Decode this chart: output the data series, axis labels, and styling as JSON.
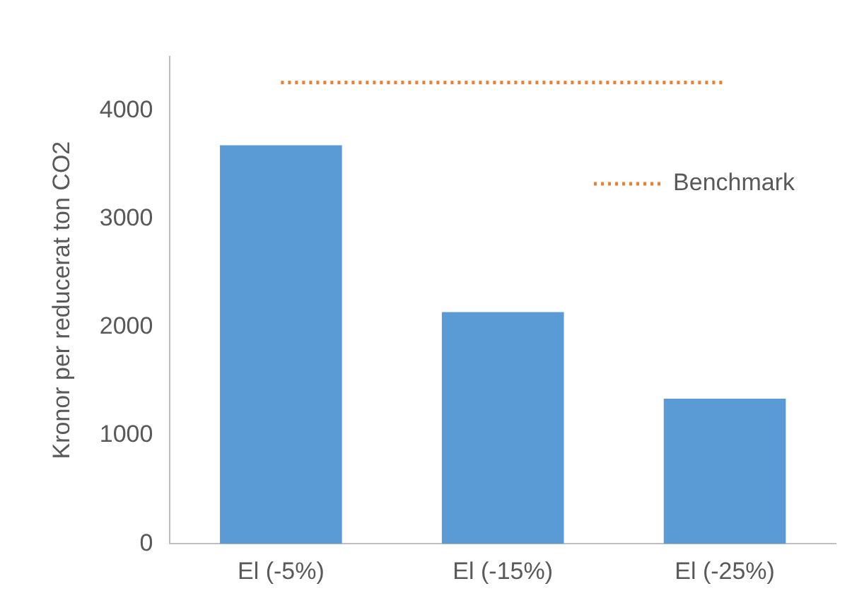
{
  "chart_data": {
    "type": "bar",
    "ylabel": "Kronor per reducerat ton CO2",
    "categories": [
      "El (-5%)",
      "El (-15%)",
      "El (-25%)"
    ],
    "series": [
      {
        "name": null,
        "color": "#5b9bd5",
        "values": [
          3680,
          2140,
          1340
        ]
      },
      {
        "name": "Benchmark",
        "type": "line",
        "color": "#ed7d31",
        "line_style": "dotted",
        "marker": "none",
        "values": [
          4260,
          4260,
          4260
        ]
      }
    ],
    "ylim": [
      0,
      4500
    ],
    "yticks": [
      0,
      1000,
      2000,
      3000,
      4000
    ],
    "grid": false,
    "legend": "top right"
  }
}
